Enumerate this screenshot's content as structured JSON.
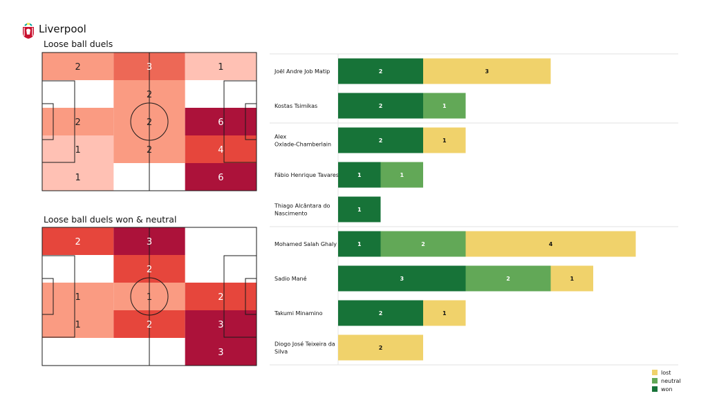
{
  "team": {
    "name": "Liverpool",
    "crest_icon": "liverpool-crest-icon"
  },
  "colors": {
    "won": "#177338",
    "neutral": "#62a857",
    "lost": "#f0d26b"
  },
  "legend": [
    {
      "key": "lost",
      "label": "lost"
    },
    {
      "key": "neutral",
      "label": "neutral"
    },
    {
      "key": "won",
      "label": "won"
    }
  ],
  "chart_data": [
    {
      "type": "heatmap",
      "title": "Loose ball duels",
      "rows": 5,
      "cols": 3,
      "values": [
        [
          2,
          3,
          1
        ],
        [
          null,
          2,
          null
        ],
        [
          2,
          2,
          6
        ],
        [
          1,
          2,
          4
        ],
        [
          1,
          null,
          6
        ]
      ]
    },
    {
      "type": "heatmap",
      "title": "Loose ball duels won & neutral",
      "rows": 5,
      "cols": 3,
      "values": [
        [
          2,
          3,
          null
        ],
        [
          null,
          2,
          null
        ],
        [
          1,
          1,
          2
        ],
        [
          1,
          2,
          3
        ],
        [
          null,
          null,
          3
        ]
      ]
    },
    {
      "type": "bar",
      "stacked": true,
      "orientation": "horizontal",
      "categories": [
        "Joël Andre Job Matip",
        "Kostas Tsimikas",
        "Alex Oxlade-Chamberlain",
        "Fábio Henrique Tavares",
        "Thiago Alcântara do Nascimento",
        "Mohamed  Salah Ghaly",
        "Sadio Mané",
        "Takumi Minamino",
        "Diogo José Teixeira da Silva"
      ],
      "category_lines": [
        [
          "Joël Andre Job Matip"
        ],
        [
          "Kostas Tsimikas"
        ],
        [
          "Alex",
          "Oxlade-Chamberlain"
        ],
        [
          "Fábio Henrique Tavares"
        ],
        [
          "Thiago Alcântara do",
          "Nascimento"
        ],
        [
          "Mohamed  Salah Ghaly"
        ],
        [
          "Sadio Mané"
        ],
        [
          "Takumi Minamino"
        ],
        [
          "Diogo José Teixeira da",
          "Silva"
        ]
      ],
      "series": [
        {
          "name": "won",
          "values": [
            2,
            2,
            2,
            1,
            1,
            1,
            3,
            2,
            0
          ]
        },
        {
          "name": "neutral",
          "values": [
            0,
            1,
            0,
            1,
            0,
            2,
            2,
            0,
            0
          ]
        },
        {
          "name": "lost",
          "values": [
            3,
            0,
            1,
            0,
            0,
            4,
            1,
            1,
            2
          ]
        }
      ],
      "group_separators_after": [
        1,
        4,
        8
      ]
    }
  ]
}
